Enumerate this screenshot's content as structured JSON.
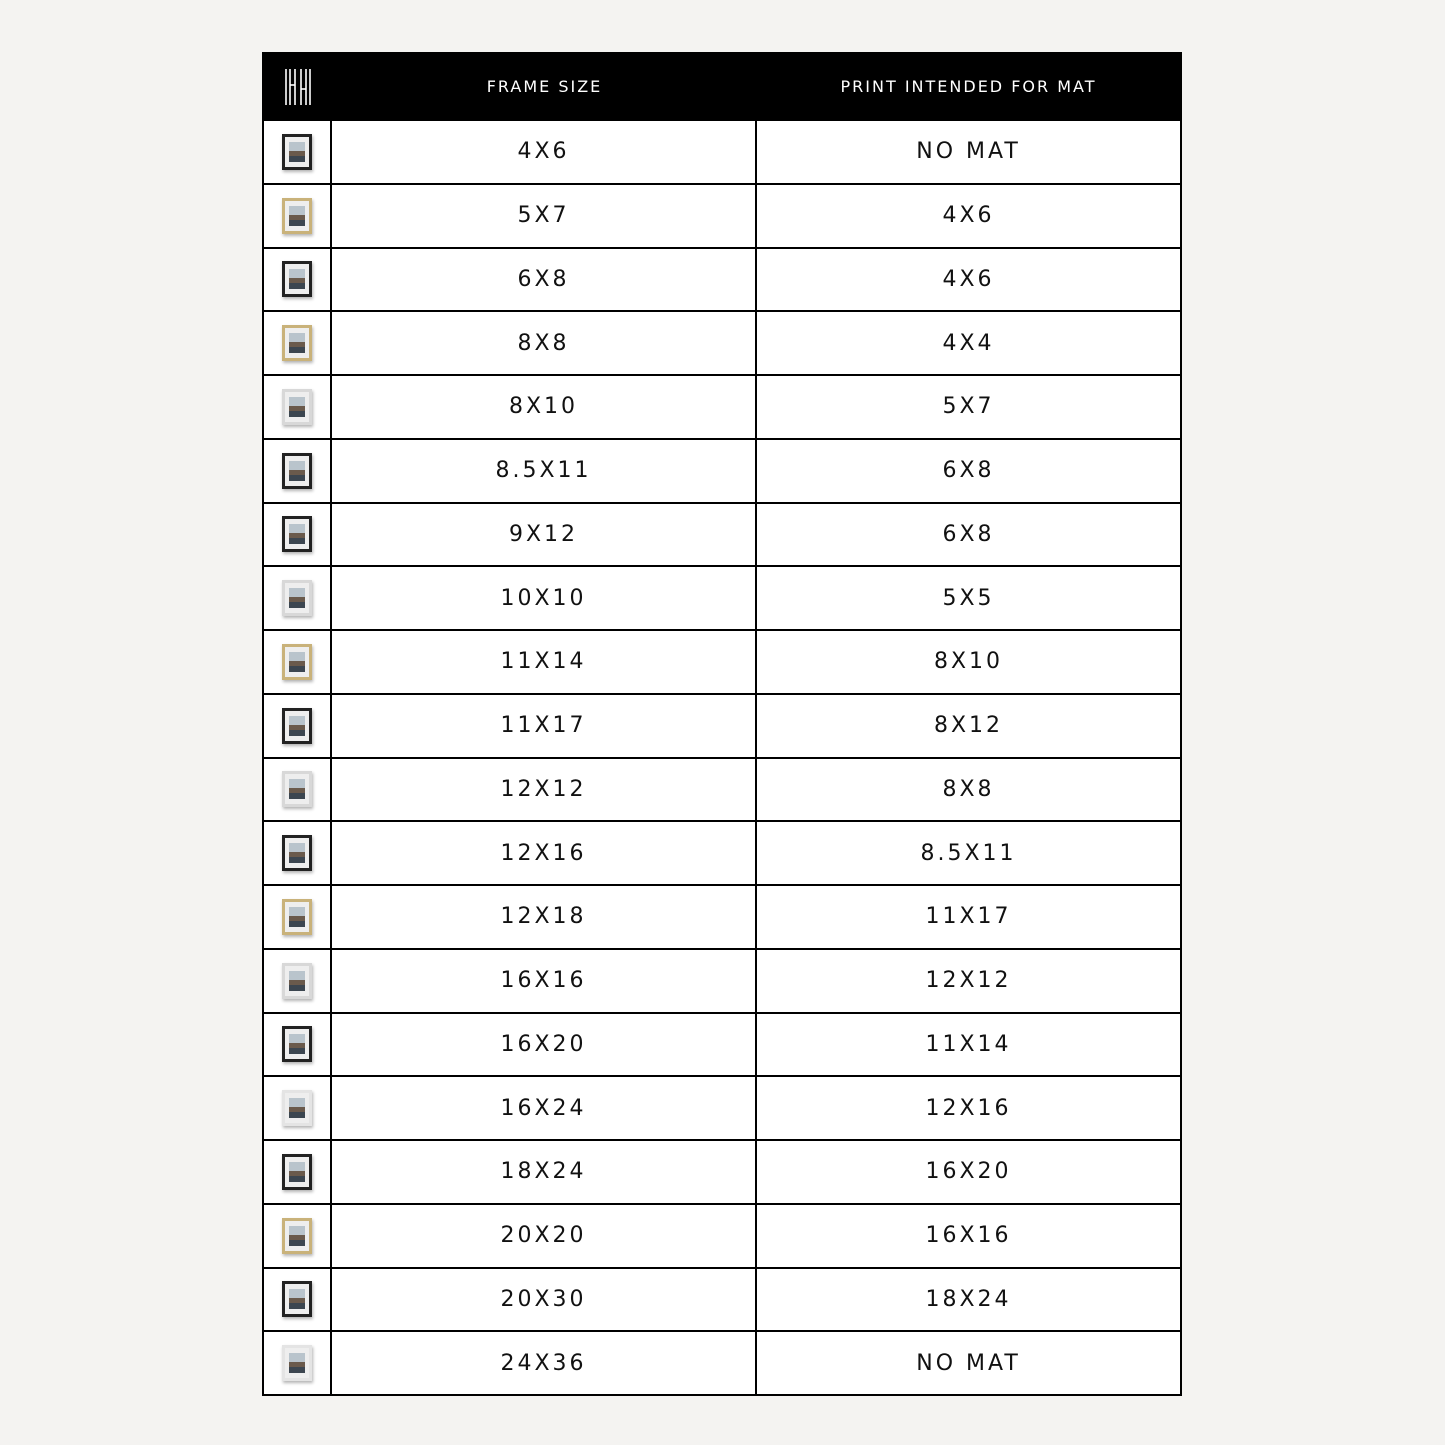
{
  "header": {
    "logo": "HH",
    "col_frame": "FRAME SIZE",
    "col_mat": "PRINT INTENDED FOR MAT"
  },
  "rows": [
    {
      "frame": "4X6",
      "mat": "NO MAT",
      "color": "#222222"
    },
    {
      "frame": "5X7",
      "mat": "4X6",
      "color": "#c9b27a"
    },
    {
      "frame": "6X8",
      "mat": "4X6",
      "color": "#222222"
    },
    {
      "frame": "8X8",
      "mat": "4X4",
      "color": "#c9b27a"
    },
    {
      "frame": "8X10",
      "mat": "5X7",
      "color": "#d8d8d8"
    },
    {
      "frame": "8.5X11",
      "mat": "6X8",
      "color": "#222222"
    },
    {
      "frame": "9X12",
      "mat": "6X8",
      "color": "#222222"
    },
    {
      "frame": "10X10",
      "mat": "5X5",
      "color": "#d8d8d8"
    },
    {
      "frame": "11X14",
      "mat": "8X10",
      "color": "#c9b27a"
    },
    {
      "frame": "11X17",
      "mat": "8X12",
      "color": "#222222"
    },
    {
      "frame": "12X12",
      "mat": "8X8",
      "color": "#d8d8d8"
    },
    {
      "frame": "12X16",
      "mat": "8.5X11",
      "color": "#222222"
    },
    {
      "frame": "12X18",
      "mat": "11X17",
      "color": "#c9b27a"
    },
    {
      "frame": "16X16",
      "mat": "12X12",
      "color": "#d8d8d8"
    },
    {
      "frame": "16X20",
      "mat": "11X14",
      "color": "#222222"
    },
    {
      "frame": "16X24",
      "mat": "12X16",
      "color": "#e4e4e4"
    },
    {
      "frame": "18X24",
      "mat": "16X20",
      "color": "#222222"
    },
    {
      "frame": "20X20",
      "mat": "16X16",
      "color": "#c9b27a"
    },
    {
      "frame": "20X30",
      "mat": "18X24",
      "color": "#222222"
    },
    {
      "frame": "24X36",
      "mat": "NO MAT",
      "color": "#e4e4e4"
    }
  ]
}
